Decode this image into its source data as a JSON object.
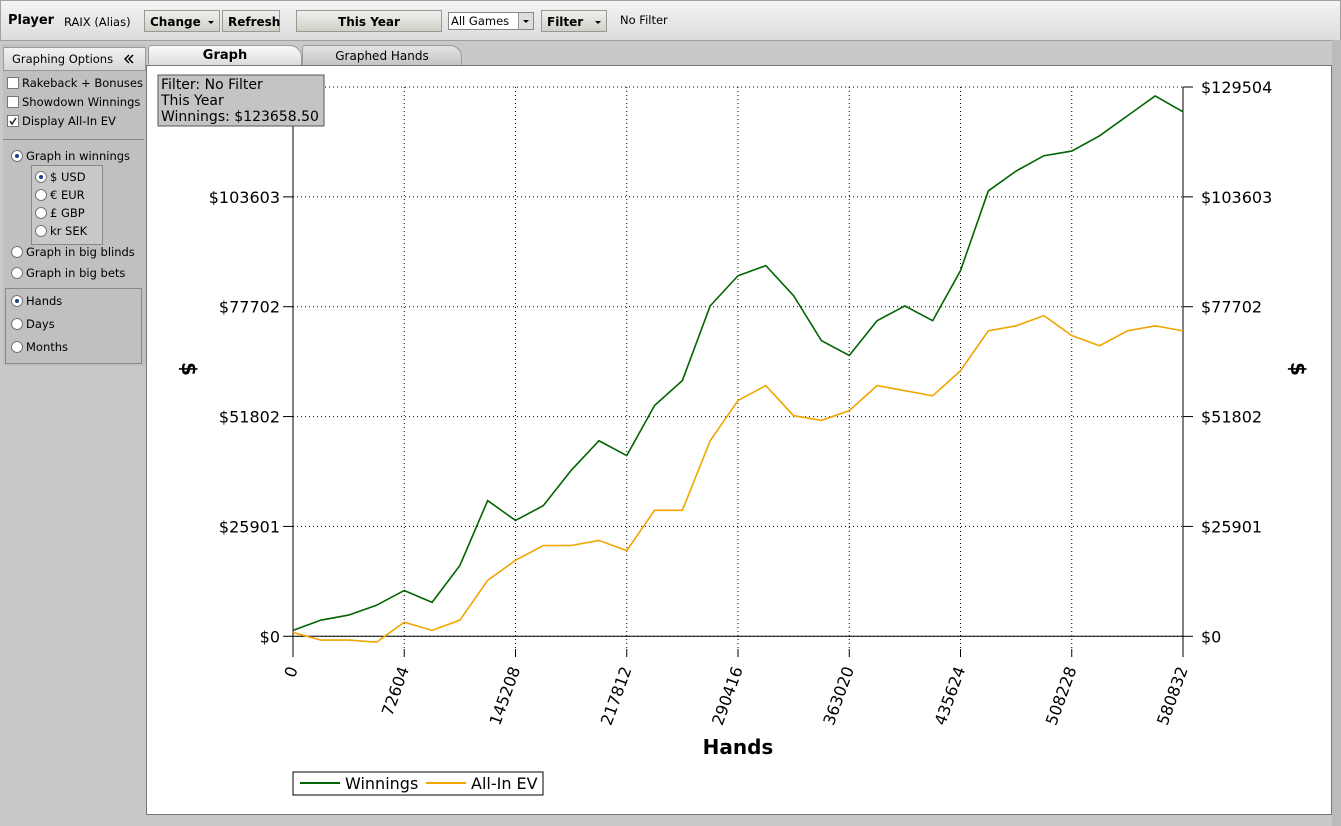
{
  "toolbar": {
    "player_label": "Player",
    "player": "RAIX (Alias)",
    "change": "Change",
    "refresh": "Refresh",
    "period": "This Year",
    "games": "All Games",
    "filter": "Filter",
    "filter_value": "No Filter"
  },
  "sidebar": {
    "title": "Graphing Options",
    "checkboxes": [
      {
        "label": "Rakeback + Bonuses",
        "checked": false
      },
      {
        "label": "Showdown Winnings",
        "checked": false
      },
      {
        "label": "Display All-In EV",
        "checked": true
      }
    ],
    "graph_in": [
      {
        "label": "Graph in winnings",
        "checked": true
      },
      {
        "label": "Graph in big blinds",
        "checked": false
      },
      {
        "label": "Graph in big bets",
        "checked": false
      }
    ],
    "currencies": [
      {
        "label": "$ USD",
        "checked": true
      },
      {
        "label": "€ EUR",
        "checked": false
      },
      {
        "label": "£ GBP",
        "checked": false
      },
      {
        "label": "kr SEK",
        "checked": false
      }
    ],
    "x_units": [
      {
        "label": "Hands",
        "checked": true
      },
      {
        "label": "Days",
        "checked": false
      },
      {
        "label": "Months",
        "checked": false
      }
    ]
  },
  "tabs": [
    {
      "label": "Graph",
      "active": true
    },
    {
      "label": "Graphed Hands",
      "active": false
    }
  ],
  "info_box": [
    "Filter: No Filter",
    "This Year",
    "Winnings: $123658.50"
  ],
  "chart_data": {
    "type": "line",
    "x_label": "Hands",
    "y_label": "$",
    "grid": true,
    "x": [
      0,
      18151,
      36302,
      54453,
      72604,
      90755,
      108906,
      127057,
      145208,
      163359,
      181510,
      199661,
      217812,
      235963,
      254114,
      272265,
      290416,
      308567,
      326718,
      344869,
      363020,
      381171,
      399322,
      417473,
      435624,
      453775,
      471926,
      490077,
      508228,
      526379,
      544530,
      562681,
      580832
    ],
    "series": [
      {
        "name": "Winnings",
        "color": "#006400",
        "values": [
          1400,
          3800,
          5000,
          7300,
          10800,
          8000,
          16700,
          32000,
          27300,
          30800,
          39100,
          46100,
          42600,
          54400,
          60300,
          77900,
          85000,
          87400,
          80300,
          69700,
          66200,
          74400,
          77900,
          74400,
          86200,
          105000,
          109700,
          113300,
          114400,
          118000,
          122700,
          127400,
          123659
        ]
      },
      {
        "name": "All-In EV",
        "color": "#f0a500",
        "values": [
          900,
          -900,
          -900,
          -1400,
          3300,
          1400,
          3800,
          13200,
          17900,
          21400,
          21400,
          22600,
          20200,
          29700,
          29700,
          46100,
          55600,
          59100,
          52000,
          50900,
          53200,
          59100,
          57900,
          56700,
          62600,
          72000,
          73200,
          75600,
          70900,
          68500,
          72000,
          73200,
          72000
        ]
      }
    ],
    "xlim": [
      0,
      580832
    ],
    "xticks": [
      0,
      72604,
      145208,
      217812,
      290416,
      363020,
      435624,
      508228,
      580832
    ],
    "ylim": [
      -3000,
      129504
    ],
    "yticks": [
      {
        "value": 0,
        "label": "$0"
      },
      {
        "value": 25901,
        "label": "$25901"
      },
      {
        "value": 51802,
        "label": "$51802"
      },
      {
        "value": 77702,
        "label": "$77702"
      },
      {
        "value": 103603,
        "label": "$103603"
      },
      {
        "value": 129504,
        "label": "$129504"
      }
    ]
  }
}
